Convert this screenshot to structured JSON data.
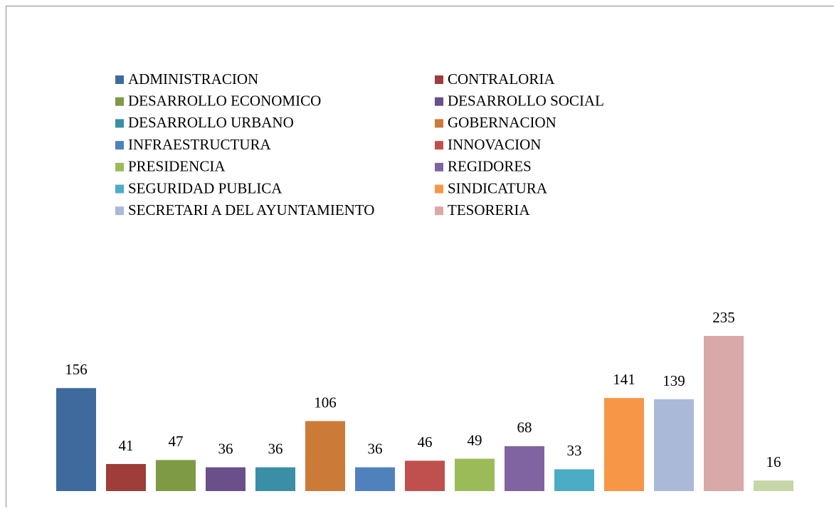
{
  "chart_data": {
    "type": "bar",
    "categories": [
      "ADMINISTRACION",
      "CONTRALORIA",
      "DESARROLLO ECONOMICO",
      "DESARROLLO SOCIAL",
      "DESARROLLO URBANO",
      "GOBERNACION",
      "INFRAESTRUCTURA",
      "INNOVACION",
      "PRESIDENCIA",
      "REGIDORES",
      "SEGURIDAD PUBLICA",
      "SINDICATURA",
      "SECRETARI A DEL AYUNTAMIENTO",
      "TESORERIA",
      null
    ],
    "values": [
      156,
      41,
      47,
      36,
      36,
      106,
      36,
      46,
      49,
      68,
      33,
      141,
      139,
      235,
      16
    ],
    "colors": [
      "#3f6a9e",
      "#9e3d3a",
      "#7e9a45",
      "#6a4f8a",
      "#3a8ea5",
      "#cc7a38",
      "#4f81bd",
      "#c0504d",
      "#9bbb59",
      "#8064a2",
      "#4bacc6",
      "#f79646",
      "#a9b9d7",
      "#d9a8a8",
      "#c6d6a6"
    ],
    "legend": "top"
  }
}
